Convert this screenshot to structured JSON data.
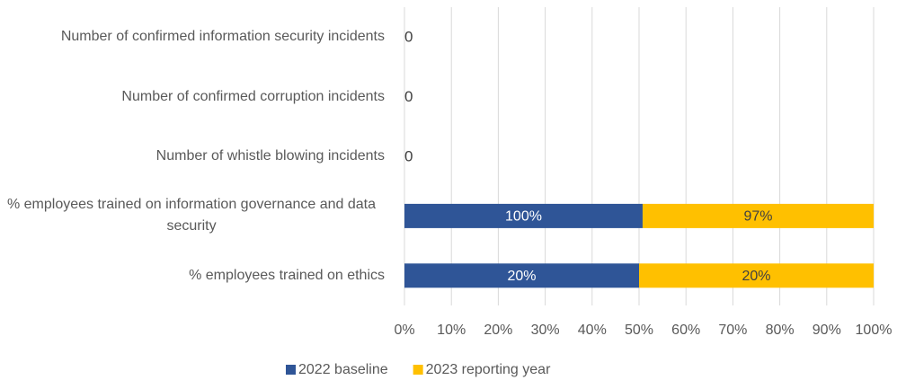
{
  "chart_data": {
    "type": "stacked-bar-100",
    "categories": [
      "Number of confirmed information security incidents",
      "Number of confirmed corruption incidents",
      "Number of whistle blowing incidents",
      "% employees trained on information governance and data security",
      "% employees trained on ethics"
    ],
    "series": [
      {
        "name": "2022 baseline",
        "color": "#2f5597",
        "values": [
          0,
          0,
          0,
          100,
          20
        ],
        "value_labels": [
          "0",
          "0",
          "0",
          "100%",
          "20%"
        ]
      },
      {
        "name": "2023 reporting year",
        "color": "#ffc000",
        "values": [
          0,
          0,
          0,
          97,
          20
        ],
        "value_labels": [
          null,
          null,
          null,
          "97%",
          "20%"
        ]
      }
    ],
    "xlim": [
      0,
      100
    ],
    "xticks": [
      {
        "value": 0,
        "label": "0%"
      },
      {
        "value": 10,
        "label": "10%"
      },
      {
        "value": 20,
        "label": "20%"
      },
      {
        "value": 30,
        "label": "30%"
      },
      {
        "value": 40,
        "label": "40%"
      },
      {
        "value": 50,
        "label": "50%"
      },
      {
        "value": 60,
        "label": "60%"
      },
      {
        "value": 70,
        "label": "70%"
      },
      {
        "value": 80,
        "label": "80%"
      },
      {
        "value": 90,
        "label": "90%"
      },
      {
        "value": 100,
        "label": "100%"
      }
    ],
    "grid": true,
    "legend": "bottom"
  }
}
